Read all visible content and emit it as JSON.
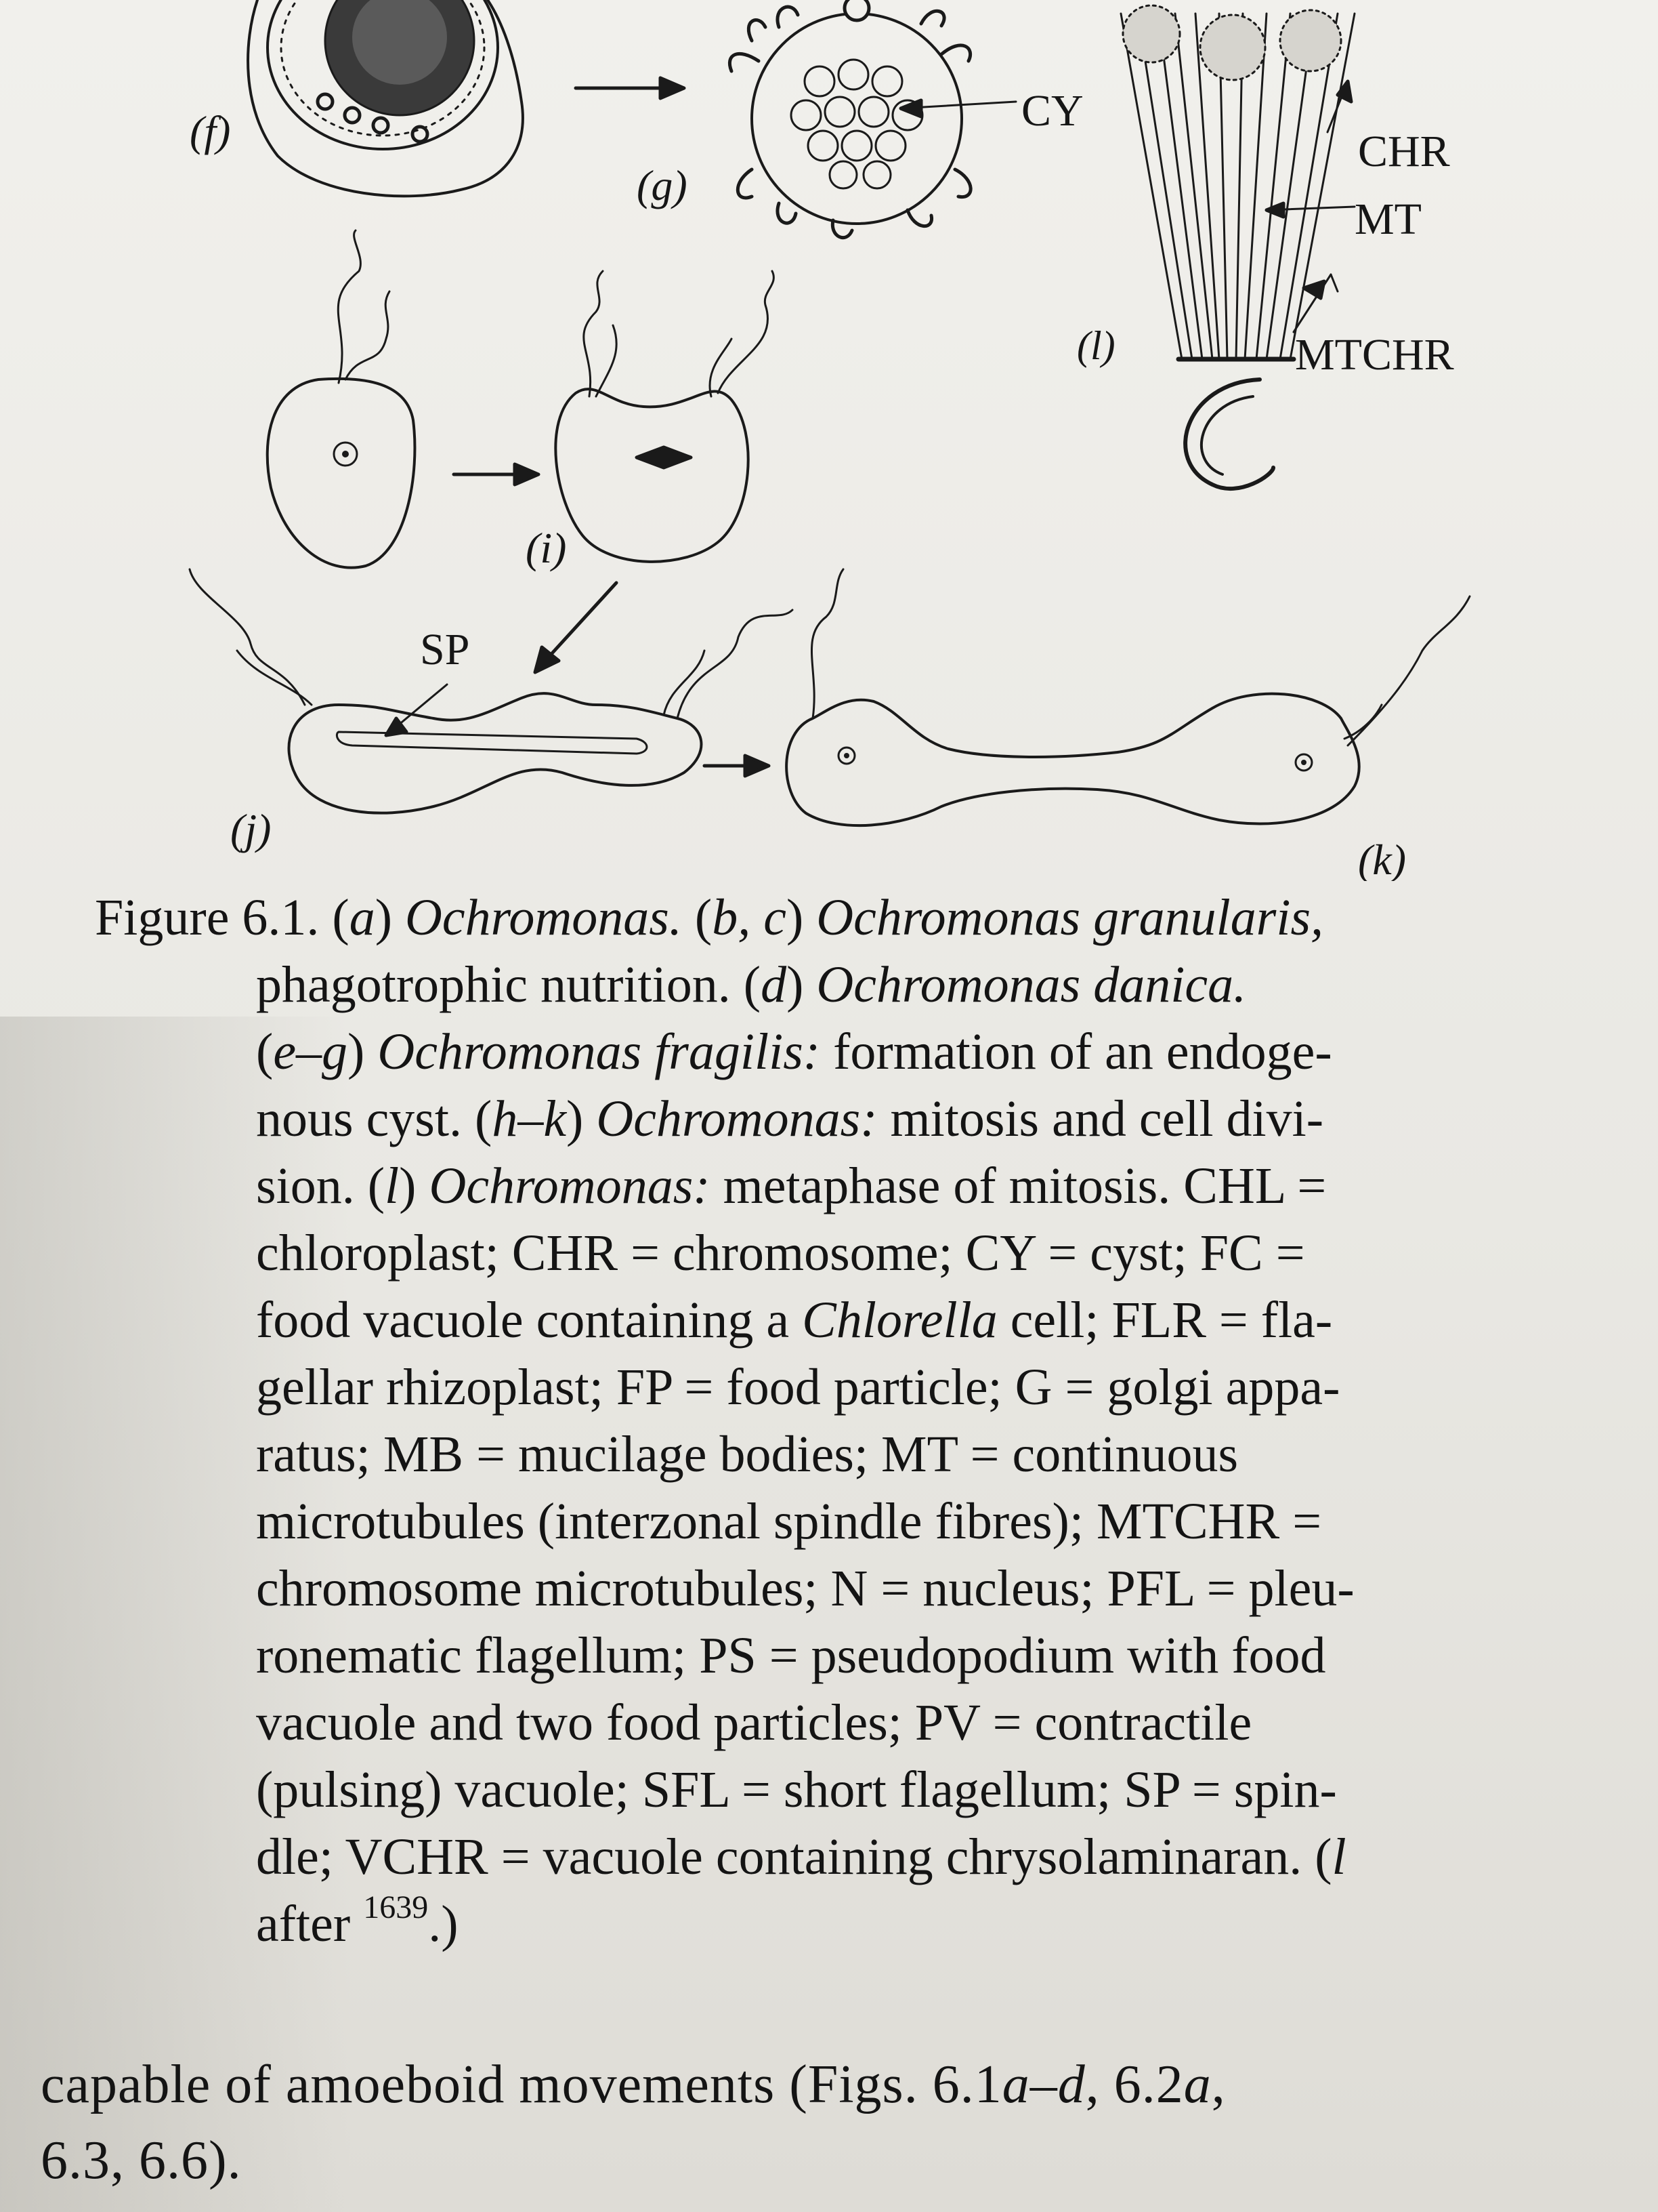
{
  "figure": {
    "panel_labels": {
      "f": "(f)",
      "g": "(g)",
      "i": "(i)",
      "j": "(j)",
      "k": "(k)",
      "l": "(l)"
    },
    "structure_labels": {
      "cy": "CY",
      "chr": "CHR",
      "mt": "MT",
      "mtchr": "MTCHR",
      "sp": "SP"
    }
  },
  "caption": {
    "l1_a": "Figure 6.1. (",
    "l1_b": "a",
    "l1_c": ") ",
    "l1_d": "Ochromonas.",
    "l1_e": " (",
    "l1_f": "b, c",
    "l1_g": ") ",
    "l1_h": "Ochromonas granularis,",
    "l2_a": "phagotrophic nutrition. (",
    "l2_b": "d",
    "l2_c": ") ",
    "l2_d": "Ochromonas danica.",
    "l3_a": "(",
    "l3_b": "e–g",
    "l3_c": ") ",
    "l3_d": "Ochromonas fragilis:",
    "l3_e": " formation of an endoge-",
    "l4_a": "nous cyst. (",
    "l4_b": "h–k",
    "l4_c": ") ",
    "l4_d": "Ochromonas:",
    "l4_e": " mitosis and cell divi-",
    "l5_a": "sion. (",
    "l5_b": "l",
    "l5_c": ") ",
    "l5_d": "Ochromonas:",
    "l5_e": " metaphase of mitosis. CHL =",
    "l6": "chloroplast; CHR = chromosome; CY = cyst; FC =",
    "l7_a": "food vacuole containing a ",
    "l7_b": "Chlorella",
    "l7_c": " cell; FLR = fla-",
    "l8": "gellar rhizoplast; FP = food particle; G = golgi appa-",
    "l9": "ratus; MB = mucilage bodies; MT = continuous",
    "l10": "microtubules (interzonal spindle fibres); MTCHR =",
    "l11": "chromosome microtubules; N = nucleus; PFL = pleu-",
    "l12": "ronematic flagellum; PS = pseudopodium with food",
    "l13": "vacuole and two food particles; PV = contractile",
    "l14": "(pulsing) vacuole; SFL = short flagellum; SP = spin-",
    "l15_a": "dle; VCHR = vacuole containing chrysolaminaran. (",
    "l15_b": "l",
    "l16_a": "after ",
    "l16_b": "1639",
    "l16_c": ".)"
  },
  "body": {
    "l1_a": "capable of amoeboid movements (Figs. 6.1",
    "l1_b": "a–d",
    "l1_c": ", 6.2",
    "l1_d": "a",
    "l1_e": ",",
    "l2": "6.3, 6.6)."
  }
}
